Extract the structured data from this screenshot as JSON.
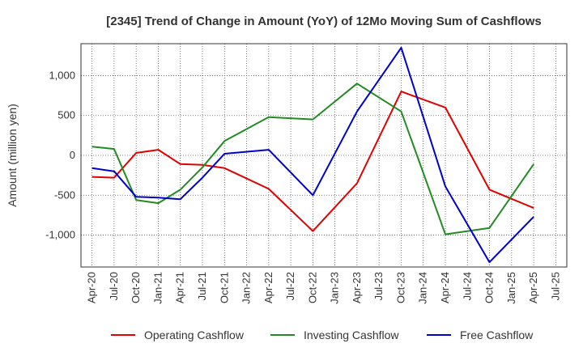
{
  "chart_data": {
    "type": "line",
    "title": "[2345]  Trend of Change in Amount (YoY) of 12Mo Moving Sum of Cashflows",
    "xlabel": "",
    "ylabel": "Amount (million yen)",
    "ylim": [
      -1400,
      1400
    ],
    "yticks": [
      1000,
      500,
      0,
      -500,
      -1000
    ],
    "ytick_labels": [
      "1,000",
      "500",
      "0",
      "-500",
      "-1,000"
    ],
    "grid": true,
    "legend_position": "bottom",
    "categories": [
      "Apr-20",
      "Jul-20",
      "Oct-20",
      "Jan-21",
      "Apr-21",
      "Jul-21",
      "Oct-21",
      "Jan-22",
      "Apr-22",
      "Jul-22",
      "Oct-22",
      "Jan-23",
      "Apr-23",
      "Jul-23",
      "Oct-23",
      "Jan-24",
      "Apr-24",
      "Jul-24",
      "Oct-24",
      "Jan-25",
      "Apr-25",
      "Jul-25"
    ],
    "series": [
      {
        "name": "Operating Cashflow",
        "color": "#e00000",
        "values": [
          -270,
          -280,
          30,
          70,
          -110,
          -120,
          -160,
          null,
          -420,
          null,
          -950,
          null,
          -350,
          null,
          800,
          null,
          600,
          null,
          -430,
          null,
          -660,
          null
        ]
      },
      {
        "name": "Investing Cashflow",
        "color": "#228b22",
        "values": [
          110,
          80,
          -560,
          -600,
          -430,
          -150,
          180,
          null,
          480,
          null,
          450,
          null,
          900,
          null,
          550,
          null,
          -990,
          null,
          -910,
          null,
          -110,
          null
        ]
      },
      {
        "name": "Free Cashflow",
        "color": "#0000cc",
        "values": [
          -160,
          -200,
          -520,
          -530,
          -550,
          -280,
          20,
          null,
          70,
          null,
          -500,
          null,
          550,
          null,
          1350,
          null,
          -390,
          null,
          -1340,
          null,
          -770,
          null
        ]
      }
    ]
  }
}
